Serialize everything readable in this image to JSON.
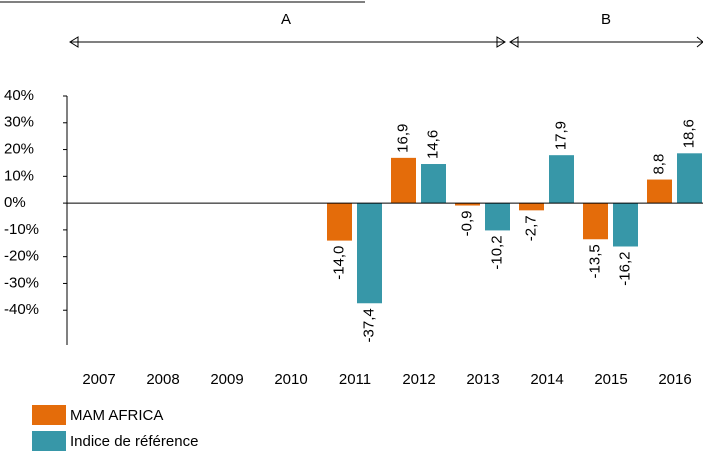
{
  "chart_data": {
    "type": "bar",
    "categories": [
      "2007",
      "2008",
      "2009",
      "2010",
      "2011",
      "2012",
      "2013",
      "2014",
      "2015",
      "2016"
    ],
    "series": [
      {
        "name": "MAM AFRICA",
        "color": "#e46c0a",
        "values": [
          null,
          null,
          null,
          null,
          -14.0,
          16.9,
          -0.9,
          -2.7,
          -13.5,
          8.8
        ],
        "value_labels": [
          null,
          null,
          null,
          null,
          "-14,0",
          "16,9",
          "-0,9",
          "-2,7",
          "-13,5",
          "8,8"
        ]
      },
      {
        "name": "Indice de référence",
        "color": "#3797a8",
        "values": [
          null,
          null,
          null,
          null,
          -37.4,
          14.6,
          -10.2,
          17.9,
          -16.2,
          18.6
        ],
        "value_labels": [
          null,
          null,
          null,
          null,
          "-37,4",
          "14,6",
          "-10,2",
          "17,9",
          "-16,2",
          "18,6"
        ]
      }
    ],
    "ylim": [
      -50,
      40
    ],
    "yticks": [
      {
        "value": -40,
        "label": "-40%"
      },
      {
        "value": -30,
        "label": "-30%"
      },
      {
        "value": -20,
        "label": "-20%"
      },
      {
        "value": -10,
        "label": "-10%"
      },
      {
        "value": 0,
        "label": "0%"
      },
      {
        "value": 10,
        "label": "10%"
      },
      {
        "value": 20,
        "label": "20%"
      },
      {
        "value": 30,
        "label": "30%"
      },
      {
        "value": 40,
        "label": "40%"
      }
    ],
    "annotations": [
      {
        "text": "A"
      },
      {
        "text": "B"
      }
    ]
  }
}
